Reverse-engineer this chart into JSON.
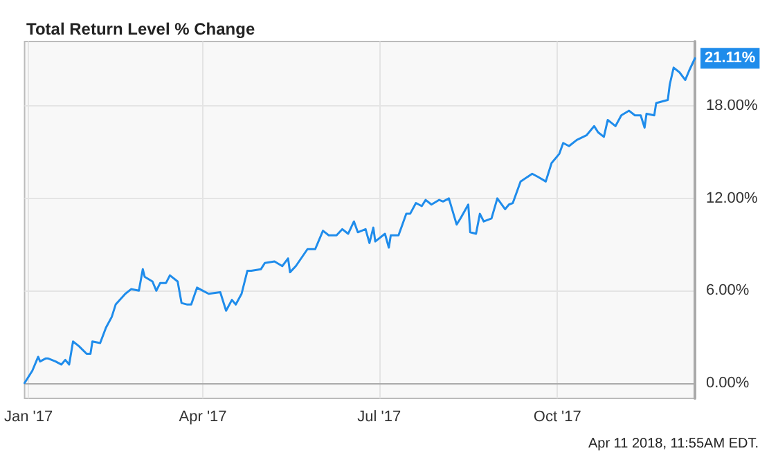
{
  "chart_data": {
    "type": "line",
    "title": "Total Return Level % Change",
    "annotations": [
      {
        "text": "21.11%",
        "x": "2017-12-11",
        "y": 21.11
      },
      "Apr 11 2018, 11:55AM EDT."
    ],
    "x": [
      "2016-12-30",
      "2017-01-03",
      "2017-01-06",
      "2017-01-07",
      "2017-01-10",
      "2017-01-11",
      "2017-01-15",
      "2017-01-18",
      "2017-01-20",
      "2017-01-22",
      "2017-01-24",
      "2017-01-27",
      "2017-01-31",
      "2017-02-02",
      "2017-02-03",
      "2017-02-07",
      "2017-02-10",
      "2017-02-13",
      "2017-02-15",
      "2017-02-20",
      "2017-02-23",
      "2017-02-27",
      "2017-03-01",
      "2017-03-02",
      "2017-03-06",
      "2017-03-08",
      "2017-03-10",
      "2017-03-13",
      "2017-03-15",
      "2017-03-19",
      "2017-03-21",
      "2017-03-24",
      "2017-03-26",
      "2017-03-29",
      "2017-04-01",
      "2017-04-04",
      "2017-04-10",
      "2017-04-13",
      "2017-04-16",
      "2017-04-18",
      "2017-04-21",
      "2017-04-24",
      "2017-04-26",
      "2017-05-01",
      "2017-05-03",
      "2017-05-08",
      "2017-05-12",
      "2017-05-15",
      "2017-05-16",
      "2017-05-19",
      "2017-05-25",
      "2017-05-29",
      "2017-06-02",
      "2017-06-05",
      "2017-06-09",
      "2017-06-12",
      "2017-06-15",
      "2017-06-18",
      "2017-06-20",
      "2017-06-24",
      "2017-06-26",
      "2017-06-28",
      "2017-06-29",
      "2017-07-04",
      "2017-07-06",
      "2017-07-07",
      "2017-07-11",
      "2017-07-13",
      "2017-07-15",
      "2017-07-17",
      "2017-07-20",
      "2017-07-23",
      "2017-07-25",
      "2017-07-28",
      "2017-08-01",
      "2017-08-03",
      "2017-08-06",
      "2017-08-10",
      "2017-08-12",
      "2017-08-16",
      "2017-08-17",
      "2017-08-20",
      "2017-08-22",
      "2017-08-24",
      "2017-08-28",
      "2017-08-31",
      "2017-09-04",
      "2017-09-06",
      "2017-09-08",
      "2017-09-12",
      "2017-09-18",
      "2017-09-21",
      "2017-09-25",
      "2017-09-28",
      "2017-10-02",
      "2017-10-04",
      "2017-10-07",
      "2017-10-11",
      "2017-10-16",
      "2017-10-20",
      "2017-10-22",
      "2017-10-25",
      "2017-10-27",
      "2017-10-31",
      "2017-11-03",
      "2017-11-07",
      "2017-11-10",
      "2017-11-13",
      "2017-11-15",
      "2017-11-16",
      "2017-11-20",
      "2017-11-21",
      "2017-11-24",
      "2017-11-27",
      "2017-11-28",
      "2017-11-30",
      "2017-12-03",
      "2017-12-06",
      "2017-12-08",
      "2017-12-11"
    ],
    "series": [
      {
        "color": "#1f8ceb",
        "values": [
          0,
          0.8,
          1.7,
          1.4,
          1.6,
          1.6,
          1.4,
          1.2,
          1.5,
          1.2,
          2.7,
          2.4,
          1.9,
          1.9,
          2.7,
          2.6,
          3.6,
          4.3,
          5.1,
          5.8,
          6.1,
          6.0,
          7.4,
          6.9,
          6.6,
          6.0,
          6.5,
          6.5,
          7.0,
          6.6,
          5.2,
          5.1,
          5.1,
          6.2,
          6.0,
          5.8,
          5.9,
          4.7,
          5.4,
          5.1,
          5.8,
          7.3,
          7.3,
          7.4,
          7.8,
          7.9,
          7.6,
          8.1,
          7.2,
          7.6,
          8.7,
          8.7,
          9.9,
          9.6,
          9.6,
          10.0,
          9.7,
          10.5,
          9.8,
          10.0,
          9.1,
          10.1,
          9.2,
          9.7,
          8.8,
          9.6,
          9.6,
          10.3,
          11.0,
          11.0,
          11.7,
          11.5,
          11.9,
          11.6,
          11.9,
          11.8,
          12.0,
          10.3,
          10.7,
          11.6,
          9.8,
          9.7,
          11.0,
          10.5,
          10.7,
          12.0,
          11.3,
          11.6,
          11.7,
          13.1,
          13.6,
          13.4,
          13.1,
          14.3,
          14.9,
          15.6,
          15.4,
          15.8,
          16.1,
          16.7,
          16.3,
          16.0,
          17.1,
          16.7,
          17.4,
          17.7,
          17.4,
          17.4,
          16.6,
          17.5,
          17.4,
          18.2,
          18.3,
          18.4,
          19.4,
          20.5,
          20.2,
          19.7,
          20.3,
          21.11
        ]
      }
    ],
    "xlim": [
      "2016-12-30",
      "2017-12-11"
    ],
    "xticks": [
      {
        "value": "2017-01-01",
        "label": "Jan '17"
      },
      {
        "value": "2017-04-01",
        "label": "Apr '17"
      },
      {
        "value": "2017-07-01",
        "label": "Jul '17"
      },
      {
        "value": "2017-10-01",
        "label": "Oct '17"
      }
    ],
    "ylim": [
      -1,
      22.2
    ],
    "yticks": [
      {
        "value": 0,
        "label": "0.00%"
      },
      {
        "value": 6,
        "label": "6.00%"
      },
      {
        "value": 12,
        "label": "12.00%"
      },
      {
        "value": 18,
        "label": "18.00%"
      }
    ],
    "grid": true,
    "marker": "none",
    "line_style": "solid"
  }
}
